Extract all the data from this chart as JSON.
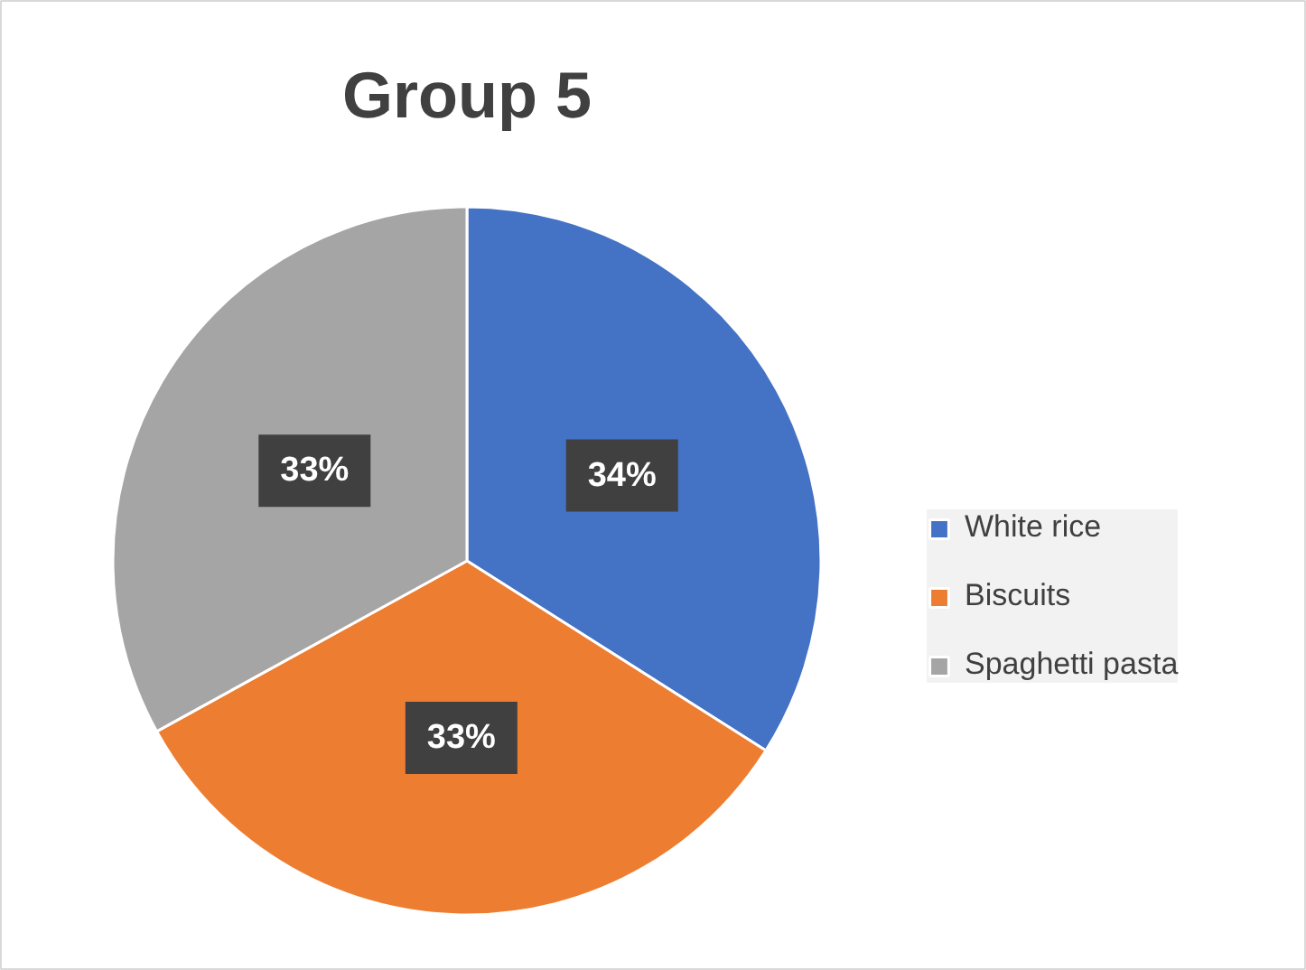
{
  "chart_data": {
    "type": "pie",
    "title": "Group 5",
    "categories": [
      "White rice",
      "Biscuits",
      "Spaghetti pasta"
    ],
    "values": [
      34,
      33,
      33
    ],
    "colors": [
      "#4472c4",
      "#ed7d31",
      "#a5a5a5"
    ],
    "value_labels": [
      "34%",
      "33%",
      "33%"
    ],
    "legend": "right"
  }
}
